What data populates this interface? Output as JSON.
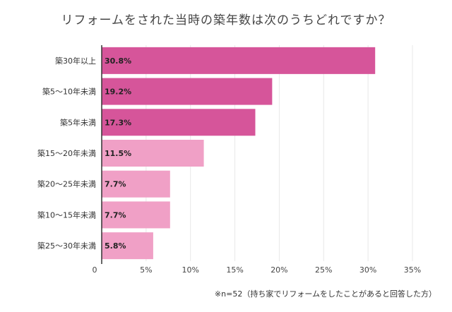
{
  "chart_data": {
    "type": "bar",
    "orientation": "horizontal",
    "title": "リフォームをされた当時の築年数は次のうちどれですか？",
    "categories": [
      "築30年以上",
      "築5～10年未満",
      "築5年未満",
      "築15～20年未満",
      "築20～25年未満",
      "築10～15年未満",
      "築25～30年未満"
    ],
    "values": [
      30.8,
      19.2,
      17.3,
      11.5,
      7.7,
      7.7,
      5.8
    ],
    "value_labels": [
      "30.8%",
      "19.2%",
      "17.3%",
      "11.5%",
      "7.7%",
      "7.7%",
      "5.8%"
    ],
    "highlight": [
      true,
      true,
      true,
      false,
      false,
      false,
      false
    ],
    "xlim": [
      0,
      35
    ],
    "xticks": [
      "0",
      "5%",
      "10%",
      "15%",
      "20%",
      "25%",
      "30%",
      "35%"
    ],
    "xtick_values": [
      0,
      5,
      10,
      15,
      20,
      25,
      30,
      35
    ],
    "colors": {
      "dark": "#d6559a",
      "light": "#f0a0c6",
      "grid": "#e8e8e8",
      "axis": "#333333"
    }
  },
  "footnote": "※n=52（持ち家でリフォームをしたことがあると回答した方）"
}
